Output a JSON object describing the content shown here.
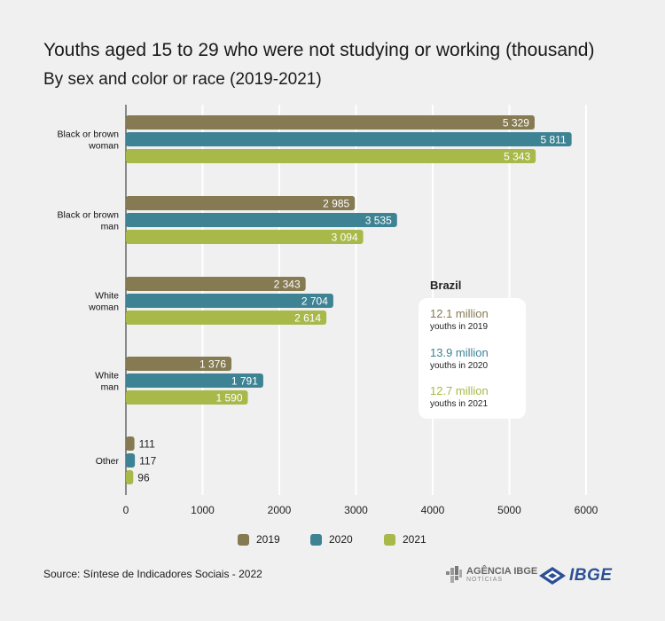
{
  "title": "Youths aged 15 to 29 who were not studying or working (thousand)",
  "subtitle": "By sex and color or race (2019-2021)",
  "colors": {
    "2019": "#857a52",
    "2020": "#3e8394",
    "2021": "#a8b94a",
    "grid": "#ffffff",
    "axis": "#222222"
  },
  "chart_data": {
    "type": "bar",
    "orientation": "horizontal",
    "categories": [
      [
        "Black or brown",
        "woman"
      ],
      [
        "Black or brown",
        "man"
      ],
      [
        "White",
        "woman"
      ],
      [
        "White",
        "man"
      ],
      [
        "Other"
      ]
    ],
    "series": [
      {
        "name": "2019",
        "values": [
          5329,
          2985,
          2343,
          1376,
          111
        ],
        "labels": [
          "5 329",
          "2 985",
          "2 343",
          "1 376",
          "111"
        ]
      },
      {
        "name": "2020",
        "values": [
          5811,
          3535,
          2704,
          1791,
          117
        ],
        "labels": [
          "5 811",
          "3 535",
          "2 704",
          "1 791",
          "117"
        ]
      },
      {
        "name": "2021",
        "values": [
          5343,
          3094,
          2614,
          1590,
          96
        ],
        "labels": [
          "5 343",
          "3 094",
          "2 614",
          "1 590",
          "96"
        ]
      }
    ],
    "xlim": [
      0,
      6000
    ],
    "xticks": [
      0,
      1000,
      2000,
      3000,
      4000,
      5000,
      6000
    ],
    "xtick_labels": [
      "0",
      "1000",
      "2000",
      "3000",
      "4000",
      "5000",
      "6000"
    ],
    "grid": true,
    "legend_position": "bottom"
  },
  "info": {
    "heading": "Brazil",
    "items": [
      {
        "value": "12.1 million",
        "label": "youths in 2019",
        "year": "2019"
      },
      {
        "value": "13.9 million",
        "label": "youths in 2020",
        "year": "2020"
      },
      {
        "value": "12.7 million",
        "label": "youths in 2021",
        "year": "2021"
      }
    ]
  },
  "legend": [
    {
      "label": "2019",
      "year": "2019"
    },
    {
      "label": "2020",
      "year": "2020"
    },
    {
      "label": "2021",
      "year": "2021"
    }
  ],
  "source": "Source: Síntese de Indicadores Sociais - 2022",
  "logos": {
    "agencia": "AGÊNCIA IBGE",
    "agencia_sub": "NOTÍCIAS",
    "ibge": "IBGE"
  }
}
